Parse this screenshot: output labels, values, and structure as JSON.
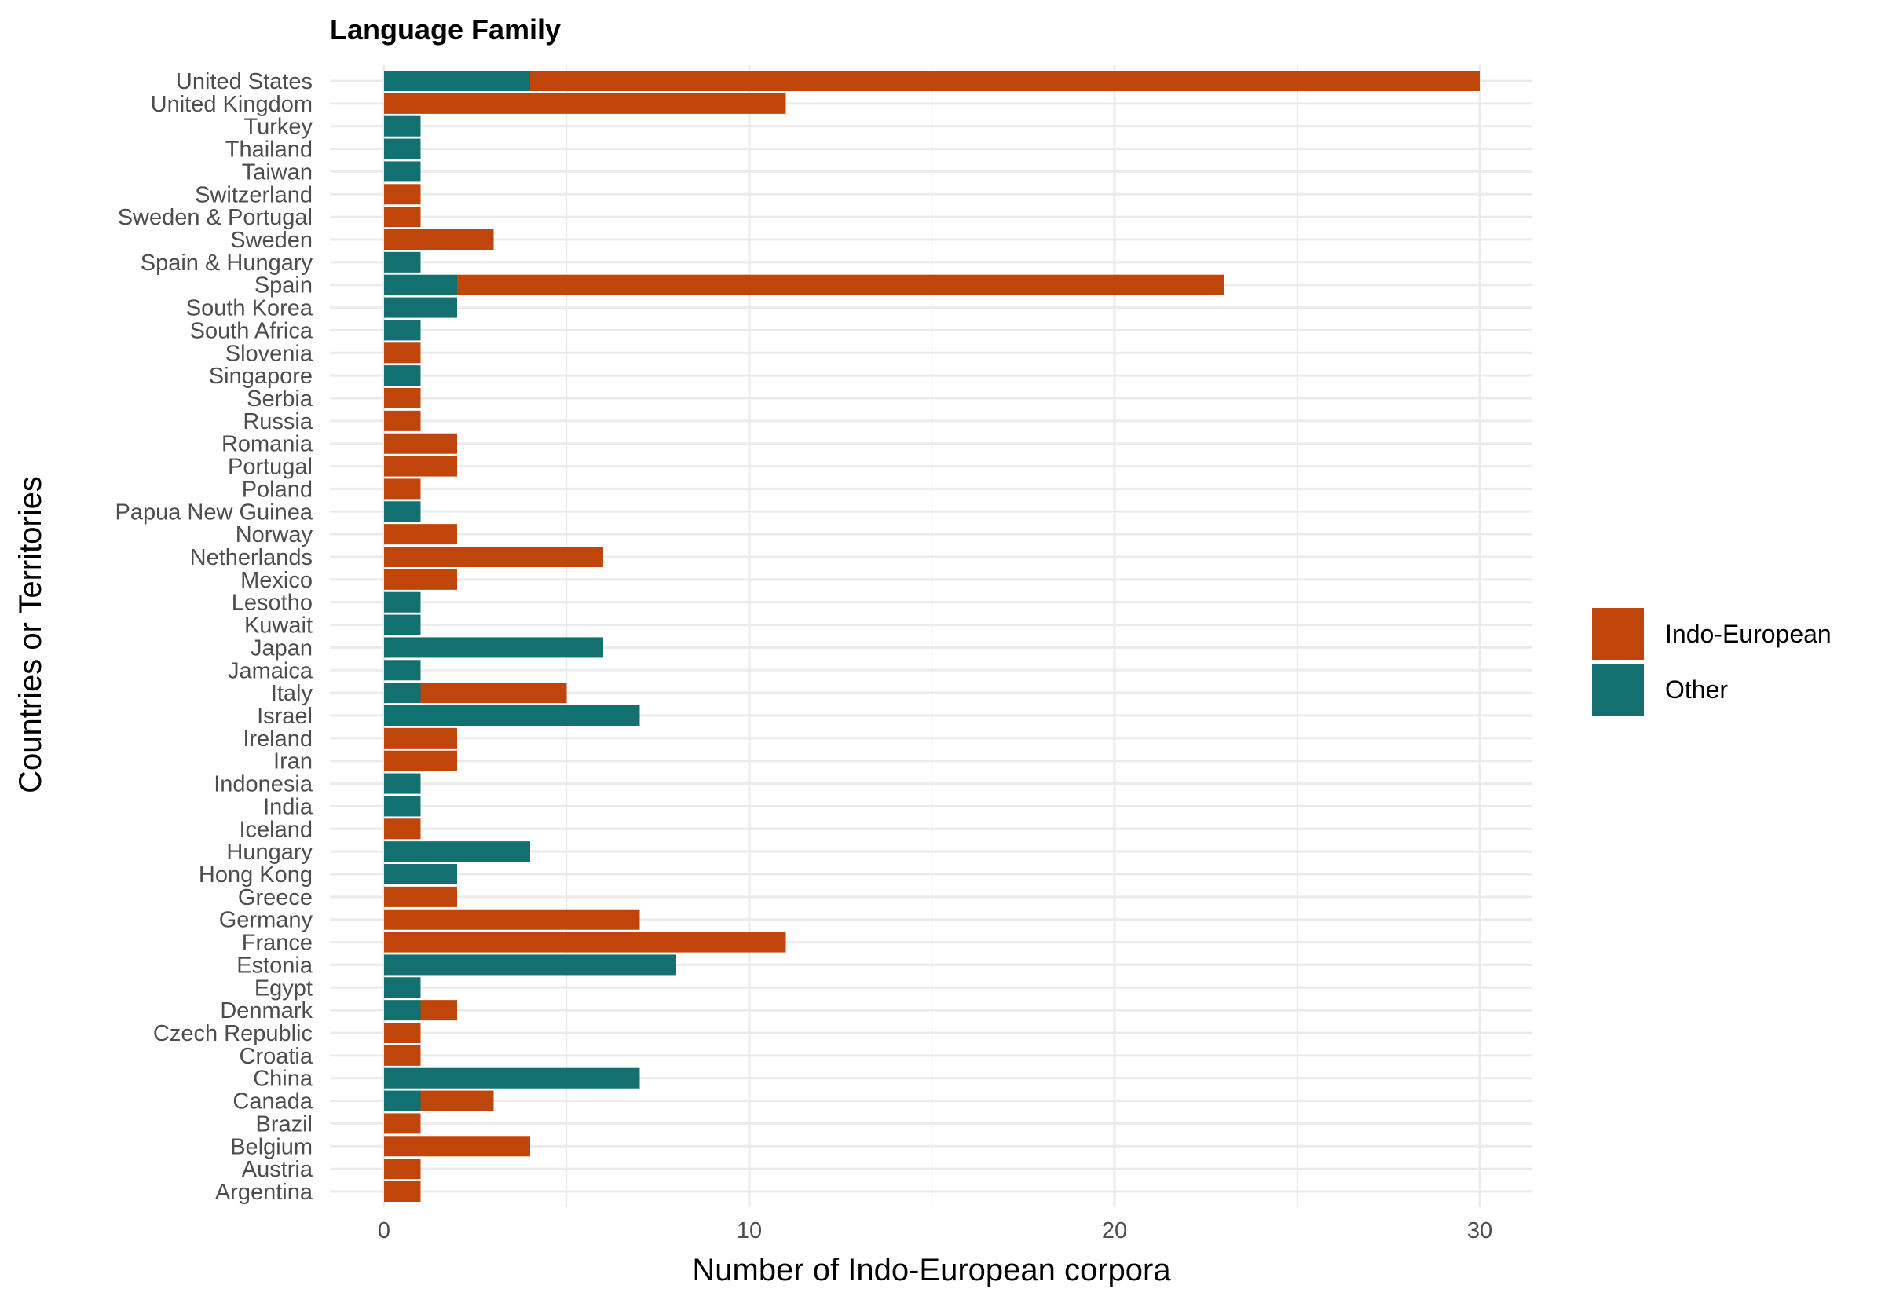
{
  "chart_data": {
    "type": "bar",
    "orientation": "horizontal",
    "stacked": true,
    "title": "Language Family",
    "xlabel": "Number of Indo-European corpora",
    "ylabel": "Countries or Territories",
    "xlim": [
      0,
      30
    ],
    "xticks": [
      0,
      10,
      20,
      30
    ],
    "grid": true,
    "legend_position": "right",
    "categories": [
      "United States",
      "United Kingdom",
      "Turkey",
      "Thailand",
      "Taiwan",
      "Switzerland",
      "Sweden & Portugal",
      "Sweden",
      "Spain & Hungary",
      "Spain",
      "South Korea",
      "South Africa",
      "Slovenia",
      "Singapore",
      "Serbia",
      "Russia",
      "Romania",
      "Portugal",
      "Poland",
      "Papua New Guinea",
      "Norway",
      "Netherlands",
      "Mexico",
      "Lesotho",
      "Kuwait",
      "Japan",
      "Jamaica",
      "Italy",
      "Israel",
      "Ireland",
      "Iran",
      "Indonesia",
      "India",
      "Iceland",
      "Hungary",
      "Hong Kong",
      "Greece",
      "Germany",
      "France",
      "Estonia",
      "Egypt",
      "Denmark",
      "Czech Republic",
      "Croatia",
      "China",
      "Canada",
      "Brazil",
      "Belgium",
      "Austria",
      "Argentina"
    ],
    "series": [
      {
        "name": "Other",
        "color": "#127070",
        "values": [
          4,
          0,
          1,
          1,
          1,
          0,
          0,
          0,
          1,
          2,
          2,
          1,
          0,
          1,
          0,
          0,
          0,
          0,
          0,
          1,
          0,
          0,
          0,
          1,
          1,
          6,
          1,
          1,
          7,
          0,
          0,
          1,
          1,
          0,
          4,
          2,
          0,
          0,
          0,
          8,
          1,
          1,
          0,
          0,
          7,
          1,
          0,
          0,
          0,
          0
        ]
      },
      {
        "name": "Indo-European",
        "color": "#c0450a",
        "values": [
          26,
          11,
          0,
          0,
          0,
          1,
          1,
          3,
          0,
          21,
          0,
          0,
          1,
          0,
          1,
          1,
          2,
          2,
          1,
          0,
          2,
          6,
          2,
          0,
          0,
          0,
          0,
          4,
          0,
          2,
          2,
          0,
          0,
          1,
          0,
          0,
          2,
          7,
          11,
          0,
          0,
          1,
          1,
          1,
          0,
          2,
          1,
          4,
          1,
          1
        ]
      }
    ],
    "legend_order": [
      "Indo-European",
      "Other"
    ]
  }
}
